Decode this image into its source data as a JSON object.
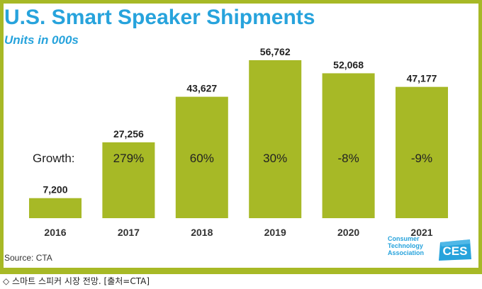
{
  "title": "U.S. Smart Speaker Shipments",
  "subtitle": "Units in 000s",
  "source": "Source: CTA",
  "growth_label": "Growth:",
  "logo": {
    "line1": "Consumer",
    "line2": "Technology",
    "line3": "Association",
    "mark": "CES"
  },
  "caption": "◇ 스마트 스피커 시장 전망. [출처=CTA]",
  "colors": {
    "bar": "#a7b926",
    "title": "#27a3dc",
    "frame": "#a7b926"
  },
  "chart_data": {
    "type": "bar",
    "categories": [
      "2016",
      "2017",
      "2018",
      "2019",
      "2020",
      "2021"
    ],
    "values": [
      7200,
      27256,
      43627,
      56762,
      52068,
      47177
    ],
    "value_labels": [
      "7,200",
      "27,256",
      "43,627",
      "56,762",
      "52,068",
      "47,177"
    ],
    "growth": [
      "",
      "279%",
      "60%",
      "30%",
      "-8%",
      "-9%"
    ],
    "title": "U.S. Smart Speaker Shipments",
    "subtitle": "Units in 000s",
    "ylim": [
      0,
      56762
    ],
    "grid": false,
    "legend": "none"
  }
}
